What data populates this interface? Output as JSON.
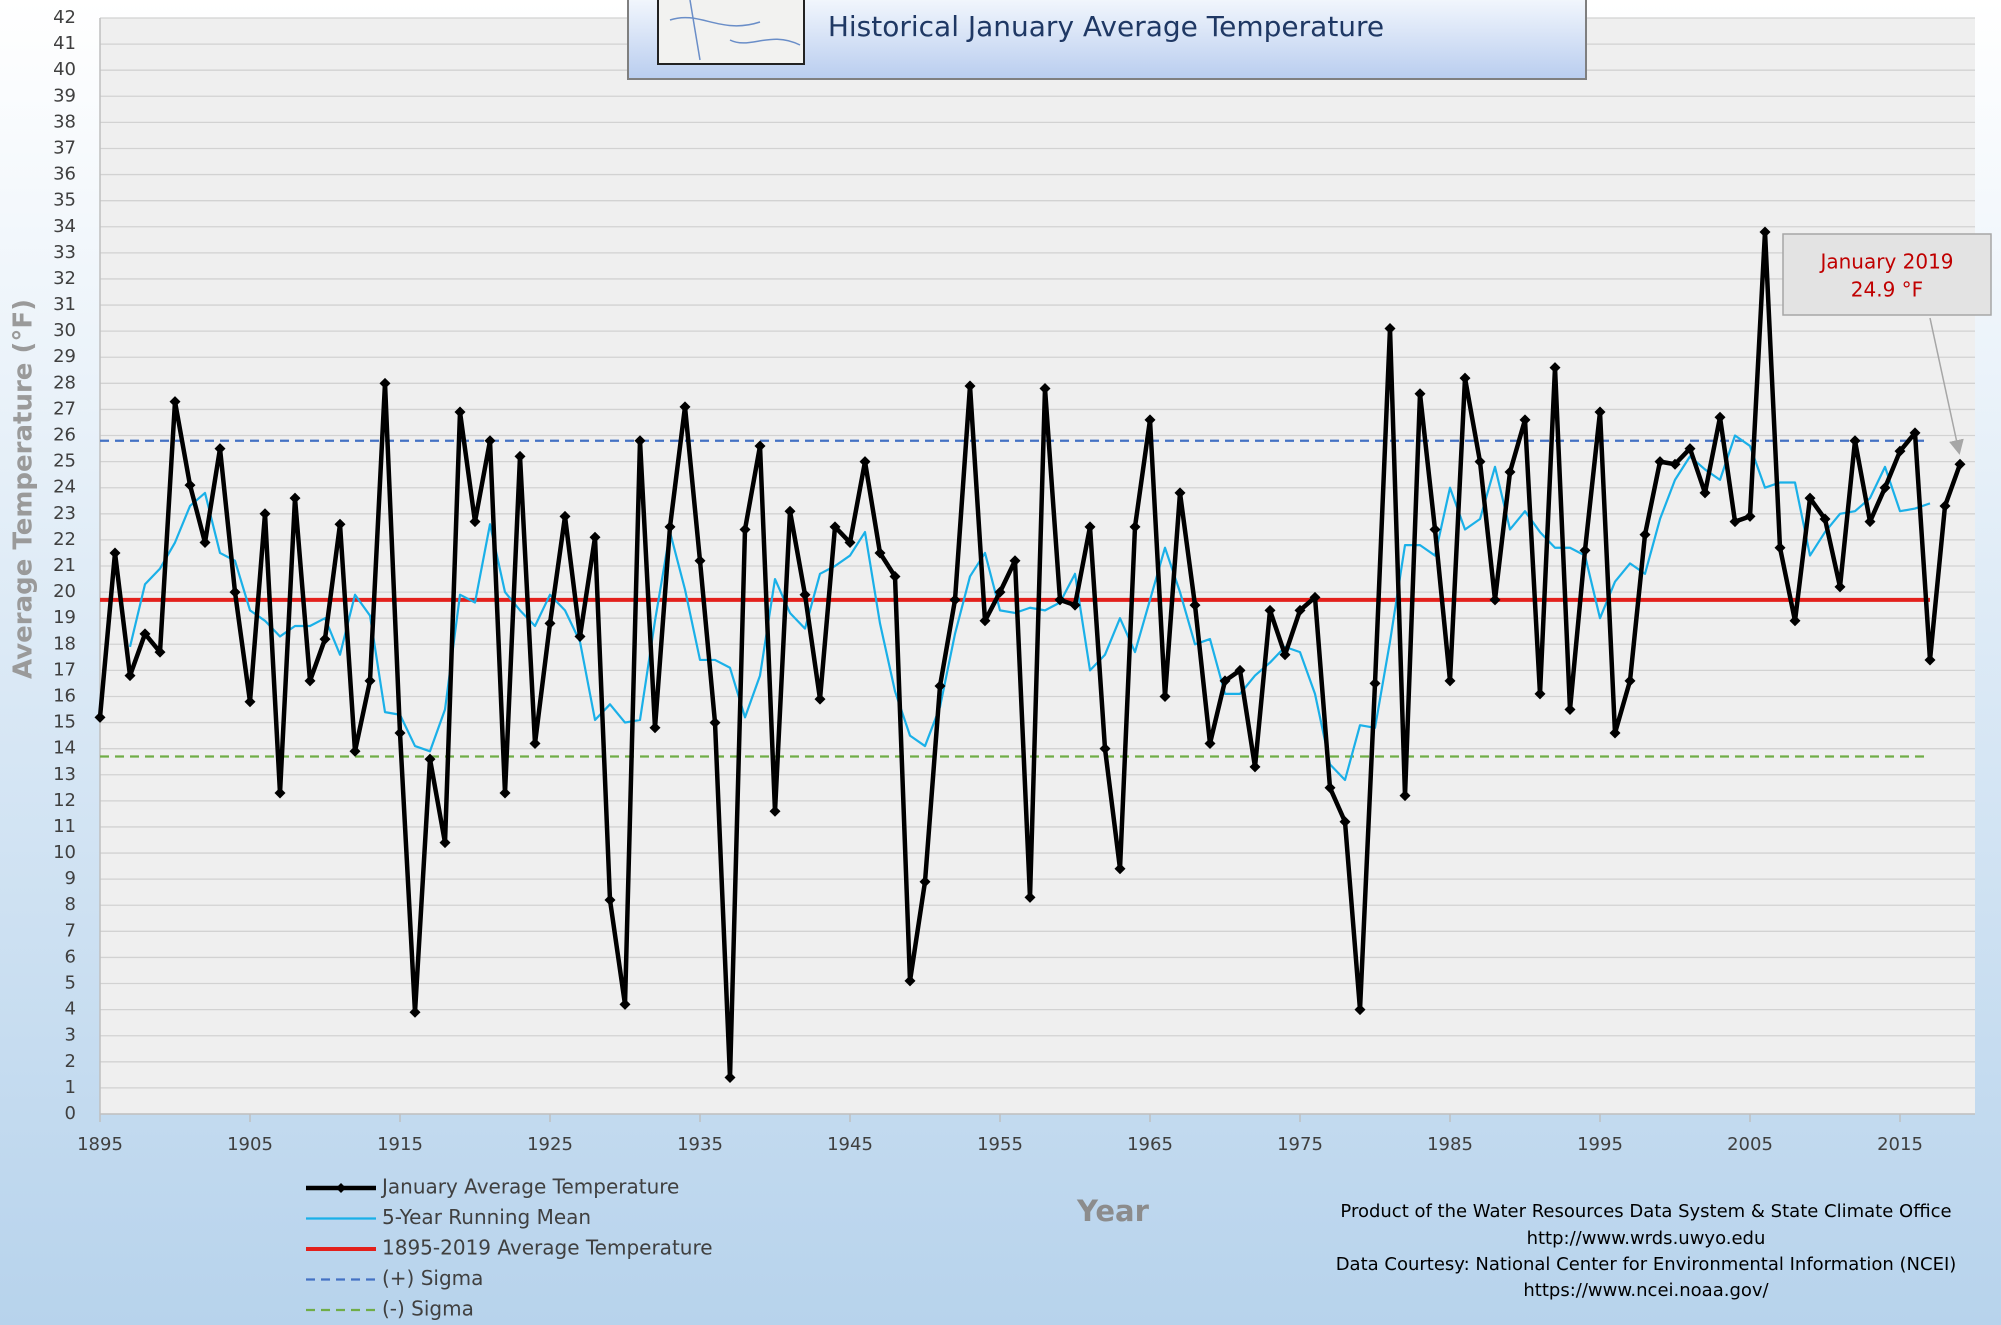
{
  "chart_data": {
    "type": "line",
    "subtitle": "Historical January Average Temperature",
    "xlabel": "Year",
    "ylabel": "Average Temperature (°F)",
    "x": [
      1895,
      1896,
      1897,
      1898,
      1899,
      1900,
      1901,
      1902,
      1903,
      1904,
      1905,
      1906,
      1907,
      1908,
      1909,
      1910,
      1911,
      1912,
      1913,
      1914,
      1915,
      1916,
      1917,
      1918,
      1919,
      1920,
      1921,
      1922,
      1923,
      1924,
      1925,
      1926,
      1927,
      1928,
      1929,
      1930,
      1931,
      1932,
      1933,
      1934,
      1935,
      1936,
      1937,
      1938,
      1939,
      1940,
      1941,
      1942,
      1943,
      1944,
      1945,
      1946,
      1947,
      1948,
      1949,
      1950,
      1951,
      1952,
      1953,
      1954,
      1955,
      1956,
      1957,
      1958,
      1959,
      1960,
      1961,
      1962,
      1963,
      1964,
      1965,
      1966,
      1967,
      1968,
      1969,
      1970,
      1971,
      1972,
      1973,
      1974,
      1975,
      1976,
      1977,
      1978,
      1979,
      1980,
      1981,
      1982,
      1983,
      1984,
      1985,
      1986,
      1987,
      1988,
      1989,
      1990,
      1991,
      1992,
      1993,
      1994,
      1995,
      1996,
      1997,
      1998,
      1999,
      2000,
      2001,
      2002,
      2003,
      2004,
      2005,
      2006,
      2007,
      2008,
      2009,
      2010,
      2011,
      2012,
      2013,
      2014,
      2015,
      2016,
      2017,
      2018,
      2019
    ],
    "series": [
      {
        "name": "January Average Temperature",
        "color": "#000000",
        "values": [
          15.2,
          21.5,
          16.8,
          18.4,
          17.7,
          27.3,
          24.1,
          21.9,
          25.5,
          20.0,
          15.8,
          23.0,
          12.3,
          23.6,
          16.6,
          18.2,
          22.6,
          13.9,
          16.6,
          28.0,
          14.6,
          3.9,
          13.6,
          10.4,
          26.9,
          22.7,
          25.8,
          12.3,
          25.2,
          14.2,
          18.8,
          22.9,
          18.3,
          22.1,
          8.2,
          4.2,
          25.8,
          14.8,
          22.5,
          27.1,
          21.2,
          15.0,
          1.4,
          22.4,
          25.6,
          11.6,
          23.1,
          19.9,
          15.9,
          22.5,
          21.9,
          25.0,
          21.5,
          20.6,
          5.1,
          8.9,
          16.4,
          19.7,
          27.9,
          18.9,
          20.0,
          21.2,
          8.3,
          27.8,
          19.7,
          19.5,
          22.5,
          14.0,
          9.4,
          22.5,
          26.6,
          16.0,
          23.8,
          19.5,
          14.2,
          16.6,
          17.0,
          13.3,
          19.3,
          17.6,
          19.3,
          19.8,
          12.5,
          11.2,
          4.0,
          16.5,
          30.1,
          12.2,
          27.6,
          22.4,
          16.6,
          28.2,
          25.0,
          19.7,
          24.6,
          26.6,
          16.1,
          28.6,
          15.5,
          21.6,
          26.9,
          14.6,
          16.6,
          22.2,
          25.0,
          24.9,
          25.5,
          23.8,
          26.7,
          22.7,
          22.9,
          33.8,
          21.7,
          18.9,
          23.6,
          22.8,
          20.2,
          25.8,
          22.7,
          24.0,
          25.4,
          26.1,
          17.4,
          23.3,
          24.9
        ]
      },
      {
        "name": "5-Year Running Mean",
        "color": "#1ab0e8",
        "values": [
          null,
          null,
          17.9,
          20.3,
          20.9,
          21.9,
          23.3,
          23.8,
          21.5,
          21.2,
          19.3,
          18.9,
          18.3,
          18.7,
          18.7,
          19.0,
          17.6,
          19.9,
          19.1,
          15.4,
          15.3,
          14.1,
          13.9,
          15.5,
          19.9,
          19.6,
          22.6,
          20.0,
          19.3,
          18.7,
          19.9,
          19.3,
          18.1,
          15.1,
          15.7,
          15.0,
          15.1,
          18.9,
          22.3,
          20.1,
          17.4,
          17.4,
          17.1,
          15.2,
          16.8,
          20.5,
          19.2,
          18.6,
          20.7,
          21.0,
          21.4,
          22.3,
          18.8,
          16.2,
          14.5,
          14.1,
          15.6,
          18.4,
          20.6,
          21.5,
          19.3,
          19.2,
          19.4,
          19.3,
          19.6,
          20.7,
          17.0,
          17.6,
          19.0,
          17.7,
          19.7,
          21.7,
          20.0,
          18.0,
          18.2,
          16.1,
          16.1,
          16.8,
          17.3,
          17.9,
          17.7,
          16.1,
          13.4,
          12.8,
          14.9,
          14.8,
          18.1,
          21.8,
          21.8,
          21.4,
          24.0,
          22.4,
          22.8,
          24.8,
          22.4,
          23.1,
          22.3,
          21.7,
          21.7,
          21.4,
          19.0,
          20.4,
          21.1,
          20.7,
          22.8,
          24.3,
          25.2,
          24.7,
          24.3,
          26.0,
          25.6,
          24.0,
          24.2,
          24.2,
          21.4,
          22.3,
          23.0,
          23.1,
          23.6,
          24.8,
          23.1,
          23.2,
          23.4,
          null,
          null
        ]
      }
    ],
    "reference_lines": [
      {
        "name": "1895-2019 Average Temperature",
        "value": 19.7,
        "color": "#e3201b",
        "dashed": false,
        "span": [
          1895,
          2017
        ]
      },
      {
        "name": "(+) Sigma",
        "value": 25.8,
        "color": "#4472c4",
        "dashed": true,
        "span": [
          1895,
          2017
        ]
      },
      {
        "name": "(-) Sigma",
        "value": 13.7,
        "color": "#70ad47",
        "dashed": true,
        "span": [
          1895,
          2017
        ]
      }
    ],
    "xlim": [
      1895,
      2020
    ],
    "xticks": [
      1895,
      1905,
      1915,
      1925,
      1935,
      1945,
      1955,
      1965,
      1975,
      1985,
      1995,
      2005,
      2015
    ],
    "ylim": [
      0,
      42
    ],
    "yticks": [
      0,
      1,
      2,
      3,
      4,
      5,
      6,
      7,
      8,
      9,
      10,
      11,
      12,
      13,
      14,
      15,
      16,
      17,
      18,
      19,
      20,
      21,
      22,
      23,
      24,
      25,
      26,
      27,
      28,
      29,
      30,
      31,
      32,
      33,
      34,
      35,
      36,
      37,
      38,
      39,
      40,
      41,
      42
    ],
    "grid": true,
    "annotation": {
      "lines": [
        "January 2019",
        "24.9 °F"
      ],
      "color": "#c00000"
    },
    "credits": [
      "Product of the Water Resources Data System & State Climate Office",
      "http://www.wrds.uwyo.edu",
      "Data Courtesy: National Center for Environmental Information (NCEI)",
      "https://www.ncei.noaa.gov/"
    ]
  }
}
